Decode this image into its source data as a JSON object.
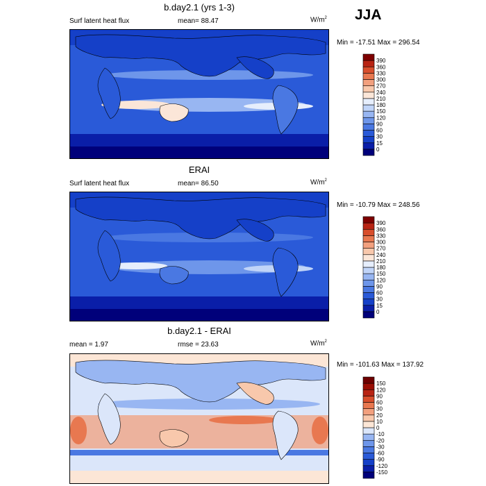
{
  "season": "JJA",
  "panels": [
    {
      "title": "b.day2.1 (yrs 1-3)",
      "left_label": "Surf latent heat flux",
      "center_label": "mean=  88.47",
      "units": "W/m",
      "units_sup": "2",
      "minmax": "Min = -17.51 Max = 296.54"
    },
    {
      "title": "ERAI",
      "left_label": "Surf latent heat flux",
      "center_label": "mean=  86.50",
      "units": "W/m",
      "units_sup": "2",
      "minmax": "Min = -10.79 Max = 248.56"
    },
    {
      "title": "b.day2.1 - ERAI",
      "left_label": "mean =   1.97",
      "center_label": "rmse =  23.63",
      "units": "W/m",
      "units_sup": "2",
      "minmax": "Min = -101.63 Max = 137.92"
    }
  ],
  "chart_data": [
    {
      "type": "heatmap",
      "title": "b.day2.1 (yrs 1-3)",
      "variable": "Surf latent heat flux",
      "mean": 88.47,
      "min": -17.51,
      "max": 296.54,
      "units": "W/m2",
      "contour_levels": [
        0,
        15,
        30,
        60,
        90,
        120,
        150,
        180,
        210,
        240,
        270,
        300,
        330,
        360,
        390
      ],
      "colorbar_labels": [
        "390",
        "360",
        "330",
        "300",
        "270",
        "240",
        "210",
        "180",
        "150",
        "120",
        "90",
        "60",
        "30",
        "15",
        "0"
      ],
      "colors": [
        "#00007a",
        "#0a1ea8",
        "#1540c8",
        "#2a5ad8",
        "#4a78e2",
        "#6e96ea",
        "#98b6f2",
        "#c0d4f8",
        "#e6eefc",
        "#fbe6d8",
        "#f8c8ac",
        "#f2a07e",
        "#e87850",
        "#d84e2c",
        "#b82414",
        "#7e0000"
      ]
    },
    {
      "type": "heatmap",
      "title": "ERAI",
      "variable": "Surf latent heat flux",
      "mean": 86.5,
      "min": -10.79,
      "max": 248.56,
      "units": "W/m2",
      "contour_levels": [
        0,
        15,
        30,
        60,
        90,
        120,
        150,
        180,
        210,
        240,
        270,
        300,
        330,
        360,
        390
      ],
      "colorbar_labels": [
        "390",
        "360",
        "330",
        "300",
        "270",
        "240",
        "210",
        "180",
        "150",
        "120",
        "90",
        "60",
        "30",
        "15",
        "0"
      ],
      "colors": [
        "#00007a",
        "#0a1ea8",
        "#1540c8",
        "#2a5ad8",
        "#4a78e2",
        "#6e96ea",
        "#98b6f2",
        "#c0d4f8",
        "#e6eefc",
        "#fbe6d8",
        "#f8c8ac",
        "#f2a07e",
        "#e87850",
        "#d84e2c",
        "#b82414",
        "#7e0000"
      ]
    },
    {
      "type": "heatmap",
      "title": "b.day2.1 - ERAI",
      "mean": 1.97,
      "rmse": 23.63,
      "min": -101.63,
      "max": 137.92,
      "units": "W/m2",
      "contour_levels": [
        -150,
        -120,
        -90,
        -60,
        -30,
        -20,
        -10,
        0,
        10,
        20,
        30,
        60,
        90,
        120,
        150
      ],
      "colorbar_labels": [
        "150",
        "120",
        "90",
        "60",
        "30",
        "20",
        "10",
        "0",
        "-10",
        "-20",
        "-30",
        "-60",
        "-90",
        "-120",
        "-150"
      ],
      "colors": [
        "#00007a",
        "#0a1ea8",
        "#1540c8",
        "#2a5ad8",
        "#4a78e2",
        "#6e96ea",
        "#98b6f2",
        "#dbe6fa",
        "#fce6d6",
        "#f8c8ac",
        "#f2a07e",
        "#e87850",
        "#d84e2c",
        "#b82414",
        "#9a0e04",
        "#6e0000"
      ]
    }
  ]
}
